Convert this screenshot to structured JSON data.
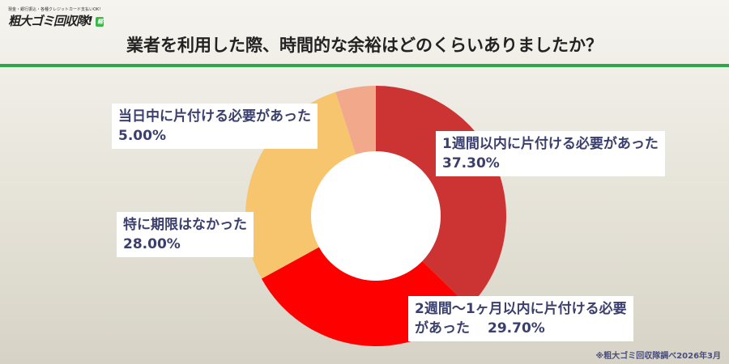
{
  "logo": {
    "tagline": "現金・銀行振込・各種クレジットカード支払いOK!",
    "name": "粗大ゴミ回収隊!",
    "badge": "軽"
  },
  "chart_data": {
    "type": "pie",
    "style": "donut",
    "title": "業者を利用した際、時間的な余裕はどのくらいありましたか？",
    "slices": [
      {
        "label": "1週間以内に片付ける必要があった",
        "value": 37.3,
        "value_label": "37.30%",
        "color": "#cc3333"
      },
      {
        "label": "2週間〜1ヶ月以内に片付ける必要があった",
        "label_lines": [
          "2週間〜1ヶ月以内に片付ける",
          "必要があった　29.70%"
        ],
        "value": 29.7,
        "value_label": "29.70%",
        "color": "#ff0000"
      },
      {
        "label": "特に期限はなかった",
        "value": 28.0,
        "value_label": "28.00%",
        "color": "#f7c56d"
      },
      {
        "label": "当日中に片付ける必要があった",
        "value": 5.0,
        "value_label": "5.00%",
        "color": "#f2a98b"
      }
    ]
  },
  "footer": "※粗大ゴミ回収隊調べ2026年3月",
  "colors": {
    "accent": "#2ba84a",
    "label_text": "#3b3f6e"
  }
}
